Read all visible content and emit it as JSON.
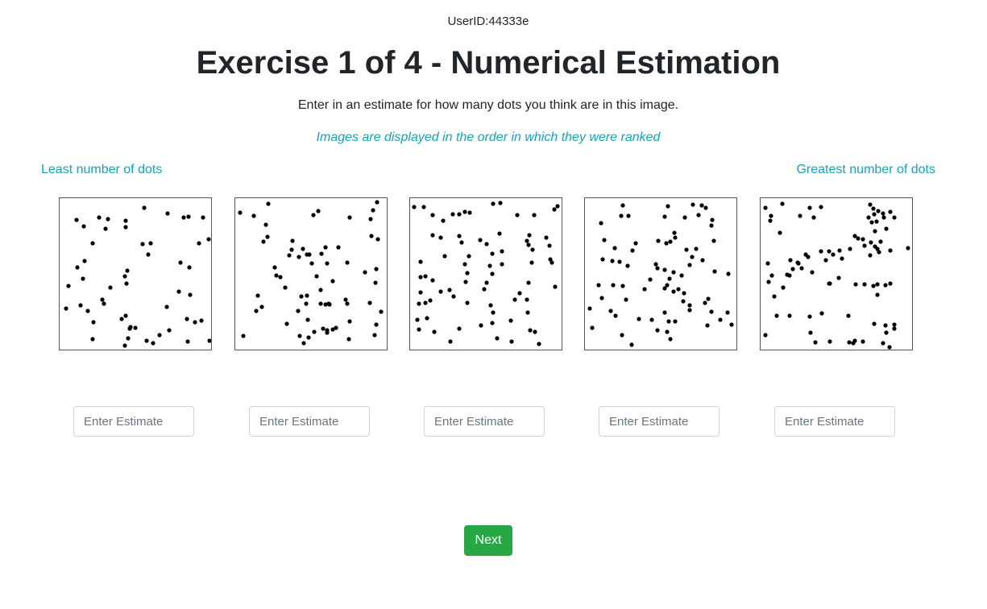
{
  "header": {
    "user_id": "UserID:44333e",
    "title": "Exercise 1 of 4 - Numerical Estimation",
    "instructions": "Enter in an estimate for how many dots you think are in this image.",
    "order_note": "Images are displayed in the order in which they were ranked"
  },
  "scale": {
    "least_label": "Least number of dots",
    "greatest_label": "Greatest number of dots"
  },
  "estimates": [
    {
      "placeholder": "Enter Estimate",
      "value": ""
    },
    {
      "placeholder": "Enter Estimate",
      "value": ""
    },
    {
      "placeholder": "Enter Estimate",
      "value": ""
    },
    {
      "placeholder": "Enter Estimate",
      "value": ""
    },
    {
      "placeholder": "Enter Estimate",
      "value": ""
    }
  ],
  "actions": {
    "next_label": "Next"
  },
  "colors": {
    "accent": "#17a2b8",
    "next_button": "#28a745",
    "dot": "#000000"
  }
}
